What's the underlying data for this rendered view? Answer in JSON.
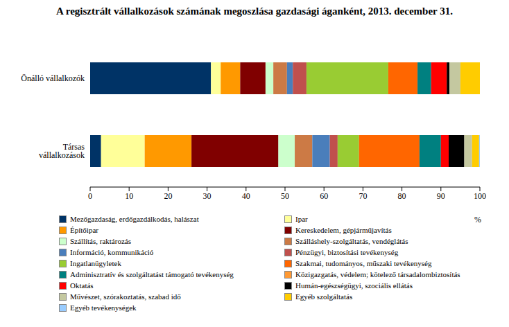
{
  "chart_data": {
    "type": "bar",
    "orientation": "horizontal",
    "stacked": true,
    "legend": "bottom",
    "title": "A regisztrált vállalkozások számának megoszlása gazdasági áganként, 2013. december 31.",
    "x_label": "%",
    "categories": [
      "Önálló vállalkozók",
      "Társas vállalkozások"
    ],
    "xlim": [
      0,
      100
    ],
    "xticks": [
      0,
      10,
      20,
      30,
      40,
      50,
      60,
      70,
      80,
      90,
      100
    ],
    "series": [
      {
        "name": "Mezőgazdaság, erdőgazdálkodás, halászat",
        "color": "#003366",
        "values": [
          31,
          2.8
        ]
      },
      {
        "name": "Ipar",
        "color": "#ffff99",
        "values": [
          2.5,
          11.2
        ]
      },
      {
        "name": "Építőipar",
        "color": "#ff9900",
        "values": [
          5,
          12
        ]
      },
      {
        "name": "Kereskedelem, gépjárműjavítás",
        "color": "#800000",
        "values": [
          6.5,
          22.3
        ]
      },
      {
        "name": "Szállítás, raktározás",
        "color": "#ccffcc",
        "values": [
          2,
          4.2
        ]
      },
      {
        "name": "Szálláshely-szolgáltatás, vendéglátás",
        "color": "#cc7a45",
        "values": [
          3.5,
          4.5
        ]
      },
      {
        "name": "Információ, kommunikáció",
        "color": "#4a7ebb",
        "values": [
          1.5,
          4.5
        ]
      },
      {
        "name": "Pénzügyi, biztosítási tevékenység",
        "color": "#c0504d",
        "values": [
          3.5,
          2
        ]
      },
      {
        "name": "Ingatlanügyletek",
        "color": "#99cc33",
        "values": [
          21,
          5.5
        ]
      },
      {
        "name": "Szakmai, tudományos, műszaki tevékenység",
        "color": "#ff6600",
        "values": [
          7.5,
          15.5
        ]
      },
      {
        "name": "Adminisztratív és szolgáltatást támogató tevékenység",
        "color": "#008080",
        "values": [
          3.5,
          5.5
        ]
      },
      {
        "name": "Közigazgatás, védelem; kötelező társadalombiztosítás",
        "color": "#ff9933",
        "values": [
          0,
          0
        ]
      },
      {
        "name": "Oktatás",
        "color": "#ff0000",
        "values": [
          4,
          2
        ]
      },
      {
        "name": "Humán-egészségügyi, szociális ellátás",
        "color": "#000000",
        "values": [
          0.7,
          4
        ]
      },
      {
        "name": "Művészet, szórakoztatás, szabad idő",
        "color": "#c4c8a0",
        "values": [
          2.8,
          2
        ]
      },
      {
        "name": "Egyéb szolgáltatás",
        "color": "#ffcc00",
        "values": [
          5,
          1.8
        ]
      },
      {
        "name": "Egyéb tevékenységek",
        "color": "#99ccff",
        "values": [
          0,
          0.2
        ]
      }
    ]
  }
}
